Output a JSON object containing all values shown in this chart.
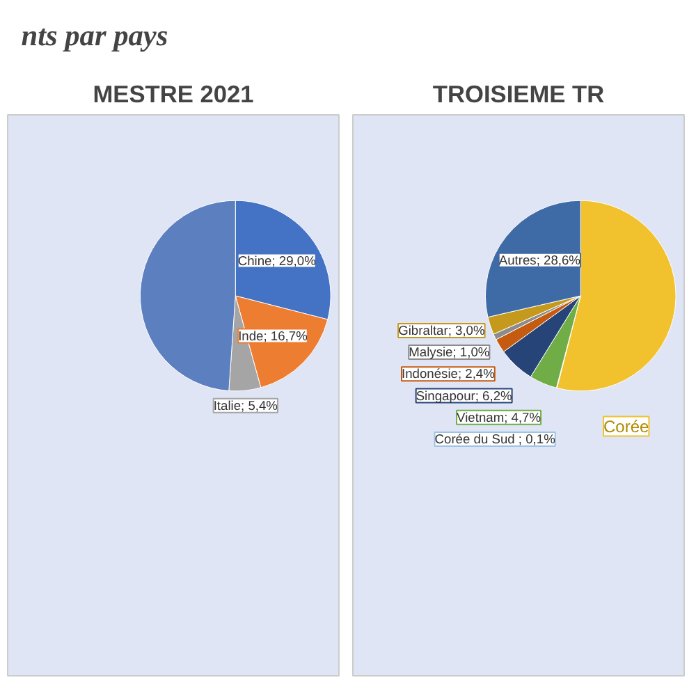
{
  "chart_data": [
    {
      "type": "pie",
      "title": "MESTRE 2021",
      "annotations": [
        "nts par pays"
      ],
      "categories": [
        null,
        null,
        null,
        null
      ],
      "values": [
        29.0,
        16.7,
        5.4,
        48.9
      ],
      "colors": [
        "#4472c4",
        "#ed7d31",
        "#a5a5a5",
        "#5b7fbf"
      ],
      "value_labels": [
        "Chine; 29,0%",
        "Inde; 16,7%",
        "Italie; 5,4%",
        null
      ]
    },
    {
      "type": "pie",
      "title": "TROISIEME TR",
      "annotations": [
        "Corée"
      ],
      "categories": [
        null,
        null,
        null,
        null,
        null,
        null,
        null,
        null
      ],
      "values": [
        54.0,
        0.1,
        4.7,
        6.2,
        2.4,
        1.0,
        3.0,
        28.6
      ],
      "colors": [
        "#f2c12e",
        "#9dc3e6",
        "#70ad47",
        "#264478",
        "#c55a11",
        "#8c8c8c",
        "#c59a1c",
        "#3e6aa6"
      ],
      "value_labels": [
        null,
        "Corée du Sud ; 0,1%",
        "Vietnam; 4,7%",
        "Singapour; 6,2%",
        "Indonésie; 2,4%",
        "Malysie; 1,0%",
        "Gibraltar; 3,0%",
        "Autres; 28,6%"
      ]
    }
  ]
}
